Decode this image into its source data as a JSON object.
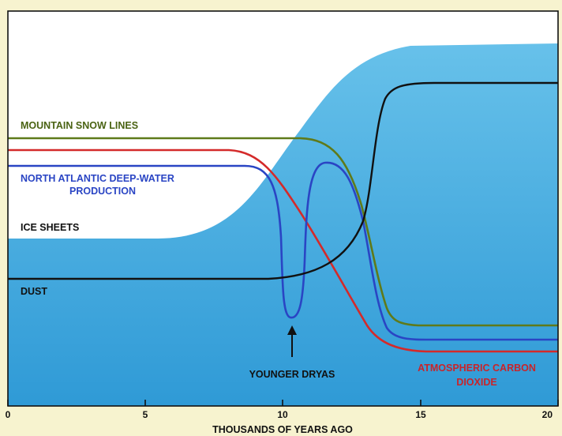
{
  "title": "",
  "x_axis": {
    "label": "THOUSANDS OF YEARS AGO",
    "ticks": [
      "0",
      "5",
      "10",
      "15",
      "20"
    ]
  },
  "labels": {
    "mountain_snow_lines": "MOUNTAIN SNOW LINES",
    "deep_water_line1": "NORTH ATLANTIC DEEP-WATER",
    "deep_water_line2": "PRODUCTION",
    "ice_sheets": "ICE SHEETS",
    "dust": "DUST",
    "younger_dryas": "YOUNGER DRYAS",
    "co2_line1": "ATMOSPHERIC CARBON",
    "co2_line2": "DIOXIDE"
  },
  "colors": {
    "background": "#f7f3cf",
    "plot_background": "#ffffff",
    "ice_sheet_fill": "#5ab8e4",
    "mountain_snow_lines": "#5f7a1a",
    "north_atlantic_deep_water": "#2a45c4",
    "atmospheric_co2": "#d42a2a",
    "dust": "#111111"
  }
}
